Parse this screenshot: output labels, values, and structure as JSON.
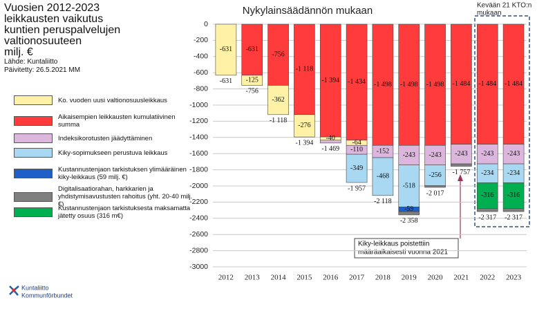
{
  "chart_data": {
    "type": "stacked_bar",
    "title": [
      "Vuosien 2012-2023",
      "leikkausten vaikutus",
      "kuntien peruspalvelujen",
      "valtionosuuteen",
      "milj. €"
    ],
    "source": "Lähde: Kuntaliitto",
    "updated": "Päivitetty: 26.5.2021 MM",
    "chart_title": "Nykylainsäädännön mukaan",
    "box_note": [
      "Kevään 21 KTO:n",
      "mukaan"
    ],
    "annotation": [
      "Kiky-leikkaus poistettiin",
      "määräaikaisesti vuonna 2021"
    ],
    "logo": [
      "Kuntaliitto",
      "Kommunförbundet"
    ],
    "categories": [
      "2012",
      "2013",
      "2014",
      "2015",
      "2016",
      "2017",
      "2018",
      "2019",
      "2020",
      "2021",
      "2022",
      "2023"
    ],
    "series": [
      {
        "name": "Ko. vuoden uusi valtionosuusleikkaus",
        "color": "#fff2a6",
        "values": [
          -631,
          -125,
          -362,
          -276,
          -40,
          -64,
          null,
          null,
          null,
          null,
          null,
          null
        ],
        "value_labels": [
          "-631",
          "-125",
          "-362",
          "-276",
          "-40",
          "-64",
          null,
          null,
          null,
          null,
          null,
          null
        ]
      },
      {
        "name": "Aikaisempien leikkausten kumulatiivinen summa",
        "color": "#ff3b3b",
        "values": [
          null,
          -631,
          -756,
          -1118,
          -1394,
          -1434,
          -1498,
          -1498,
          -1498,
          -1484,
          -1484,
          -1484
        ],
        "value_labels": [
          null,
          "-631",
          "-756",
          "-1 118",
          "-1 394",
          "-1 434",
          "-1 498",
          "-1 498",
          "-1 498",
          "-1 484",
          "-1 484",
          "-1 484"
        ]
      },
      {
        "name": "Indeksikorotusten jäädyttäminen",
        "color": "#dcb6dd",
        "values": [
          null,
          null,
          null,
          null,
          -35,
          -110,
          -152,
          -243,
          -243,
          -243,
          -243,
          -243
        ],
        "value_labels": [
          null,
          null,
          null,
          null,
          null,
          "-110",
          "-152",
          "-243",
          "-243",
          "-243",
          "-243",
          "-243"
        ]
      },
      {
        "name": "Kiky-sopimukseen perustuva leikkaus",
        "color": "#a9d8f2",
        "values": [
          null,
          null,
          null,
          null,
          null,
          -349,
          -468,
          -518,
          -256,
          null,
          -234,
          -234
        ],
        "value_labels": [
          null,
          null,
          null,
          null,
          null,
          "-349",
          "-468",
          "-518",
          "-256",
          null,
          "-234",
          "-234"
        ]
      },
      {
        "name": "Kustannustenjaon tarkistuksen ylimääräinen kiky-leikkaus (59 milj. €)",
        "color": "#1f5fc8",
        "values": [
          null,
          null,
          null,
          null,
          null,
          null,
          null,
          -59,
          null,
          null,
          null,
          null
        ],
        "value_labels": [
          null,
          null,
          null,
          null,
          null,
          null,
          null,
          "-59",
          null,
          null,
          null,
          null
        ]
      },
      {
        "name": "Digitalisaatiorahan, harkkarien ja yhdistymisavustusten rahoitus (yht. 20-40 milj.€)",
        "color": "#7f7f7f",
        "values": [
          null,
          null,
          null,
          null,
          null,
          null,
          null,
          -40,
          -20,
          -30,
          -40,
          -40
        ],
        "value_labels": [
          null,
          null,
          null,
          null,
          null,
          null,
          null,
          null,
          null,
          null,
          null,
          null
        ]
      },
      {
        "name": "Kustannustenjaon tarkistuksesta maksamatta jätetty osuus (316 m€)",
        "color": "#00b050",
        "values": [
          null,
          null,
          null,
          null,
          null,
          null,
          null,
          null,
          null,
          null,
          -316,
          -316
        ],
        "value_labels": [
          null,
          null,
          null,
          null,
          null,
          null,
          null,
          null,
          null,
          null,
          "-316",
          "-316"
        ]
      }
    ],
    "totals": [
      -631,
      -756,
      -1118,
      -1394,
      -1469,
      -1957,
      -2118,
      -2358,
      -2017,
      -1757,
      -2317,
      -2317
    ],
    "total_labels": [
      "-631",
      "-756",
      "-1 118",
      "-1 394",
      "-1 469",
      "-1 957",
      "-2 118",
      "-2 358",
      "-2 017",
      "-1 757",
      "-2 317",
      "-2 317"
    ],
    "ylim": [
      -3000,
      0
    ],
    "yticks": [
      0,
      -200,
      -400,
      -600,
      -800,
      {
        "value": -1000,
        "label": "-1000"
      },
      {
        "value": -1200,
        "label": "-1200"
      },
      {
        "value": -1400,
        "label": "-1400"
      },
      {
        "value": -1600,
        "label": "-1600"
      },
      {
        "value": -1800,
        "label": "-1800"
      },
      {
        "value": -2000,
        "label": "-2000"
      },
      {
        "value": -2200,
        "label": "-2200"
      },
      {
        "value": -2400,
        "label": "-2400"
      },
      {
        "value": -2600,
        "label": "-2600"
      },
      {
        "value": -2800,
        "label": "-2800"
      },
      {
        "value": -3000,
        "label": "-3000"
      }
    ],
    "grid": true
  }
}
